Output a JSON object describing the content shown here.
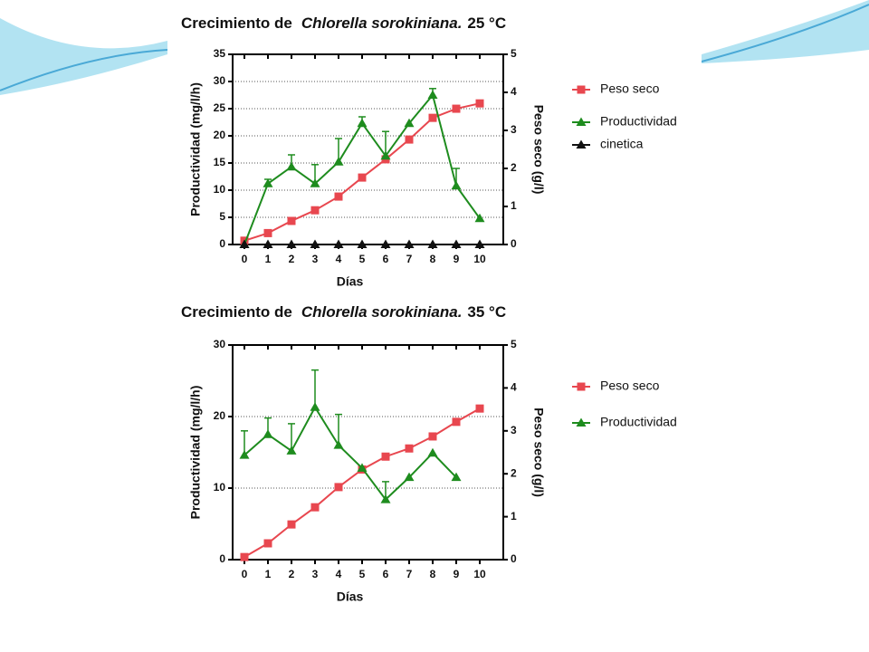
{
  "chart_data": [
    {
      "type": "line",
      "title": [
        "Crecimiento de",
        "Chlorella sorokiniana.",
        "25 °C"
      ],
      "x_label": "Días",
      "y_label": "Productividad (mg/l/h)",
      "y2_label": "Peso seco (g/l)",
      "x": [
        0,
        1,
        2,
        3,
        4,
        5,
        6,
        7,
        8,
        9,
        10
      ],
      "xlim": [
        -0.5,
        11
      ],
      "xticks": [
        0,
        1,
        2,
        3,
        4,
        5,
        6,
        7,
        8,
        9,
        10
      ],
      "ylim": [
        0,
        35
      ],
      "yticks": [
        0,
        5,
        10,
        15,
        20,
        25,
        30,
        35
      ],
      "y2lim": [
        0,
        5
      ],
      "y2ticks": [
        0,
        1,
        2,
        3,
        4,
        5
      ],
      "grid": true,
      "series": [
        {
          "name": "Peso seco",
          "color": "#e8474f",
          "marker": "square",
          "axis": "y2",
          "values": [
            0.1,
            0.3,
            0.62,
            0.9,
            1.26,
            1.76,
            2.24,
            2.76,
            3.33,
            3.57,
            3.71
          ]
        },
        {
          "name": "Productividad",
          "color": "#1e8c1e",
          "marker": "triangle",
          "values": [
            0,
            11.2,
            14.3,
            11.2,
            15.2,
            22.3,
            16.3,
            22.3,
            27.5,
            10.8,
            4.8
          ],
          "errors": [
            null,
            0.8,
            2.2,
            3.5,
            4.3,
            1.2,
            4.5,
            null,
            1.2,
            3.2,
            null
          ]
        },
        {
          "name": "cinetica",
          "color": "#111111",
          "marker": "triangle",
          "line": false,
          "values": [
            0,
            0,
            0,
            0,
            0,
            0,
            0,
            0,
            0,
            0,
            0
          ]
        }
      ]
    },
    {
      "type": "line",
      "title": [
        "Crecimiento de",
        "Chlorella sorokiniana.",
        "35 °C"
      ],
      "x_label": "Días",
      "y_label": "Productividad (mg/l/h)",
      "y2_label": "Peso seco (g/l)",
      "x": [
        0,
        1,
        2,
        3,
        4,
        5,
        6,
        7,
        8,
        9,
        10
      ],
      "xlim": [
        -0.5,
        11
      ],
      "xticks": [
        0,
        1,
        2,
        3,
        4,
        5,
        6,
        7,
        8,
        9,
        10
      ],
      "ylim": [
        0,
        30
      ],
      "yticks": [
        0,
        10,
        20,
        30
      ],
      "y2lim": [
        0,
        5
      ],
      "y2ticks": [
        0,
        1,
        2,
        3,
        4,
        5
      ],
      "grid": true,
      "series": [
        {
          "name": "Peso seco",
          "color": "#e8474f",
          "marker": "square",
          "axis": "y2",
          "values": [
            0.06,
            0.38,
            0.82,
            1.22,
            1.69,
            2.1,
            2.4,
            2.59,
            2.87,
            3.21,
            3.52
          ]
        },
        {
          "name": "Productividad",
          "color": "#1e8c1e",
          "marker": "triangle",
          "values": [
            14.6,
            17.5,
            15.2,
            21.3,
            16.0,
            12.8,
            8.4,
            11.5,
            14.9,
            11.5,
            null
          ],
          "errors": [
            3.4,
            2.3,
            3.8,
            5.2,
            4.3,
            null,
            2.5,
            null,
            null,
            null,
            null
          ]
        }
      ]
    }
  ]
}
